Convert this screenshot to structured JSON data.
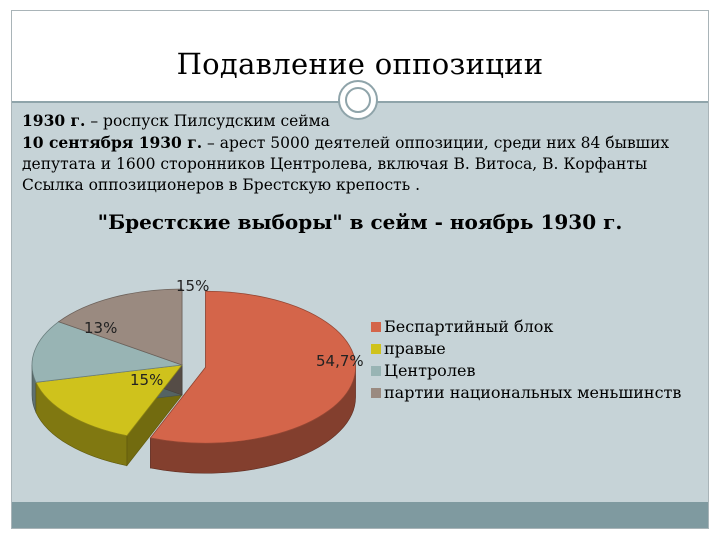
{
  "slide": {
    "title": "Подавление оппозиции",
    "lines": [
      {
        "bold": "1930 г.",
        "rest": " – роспуск Пилсудским сейма"
      },
      {
        "bold": "10 сентября 1930 г.",
        "rest": " – арест 5000 деятелей оппозиции, среди них 84 бывших"
      },
      {
        "bold": "",
        "rest": "депутата и 1600 сторонников Центролева, включая В. Витоса, В. Корфанты"
      },
      {
        "bold": "",
        "rest": "Ссылка оппозиционеров в Брестскую крепость ."
      }
    ]
  },
  "chart_data": {
    "type": "pie",
    "title": "\"Брестские выборы\" в сейм - ноябрь 1930 г.",
    "categories": [
      "Беспартийный блок",
      "правые",
      "Центролев",
      "партии национальных меньшинств"
    ],
    "values": [
      54.7,
      15,
      13,
      15
    ],
    "labels": [
      "54,7%",
      "15%",
      "13%",
      "15%"
    ],
    "colors": [
      "#d4654a",
      "#cfc21c",
      "#98b4b4",
      "#9a8a80"
    ],
    "exploded": "Беспартийный блок",
    "legend": "right",
    "style": "3d"
  }
}
